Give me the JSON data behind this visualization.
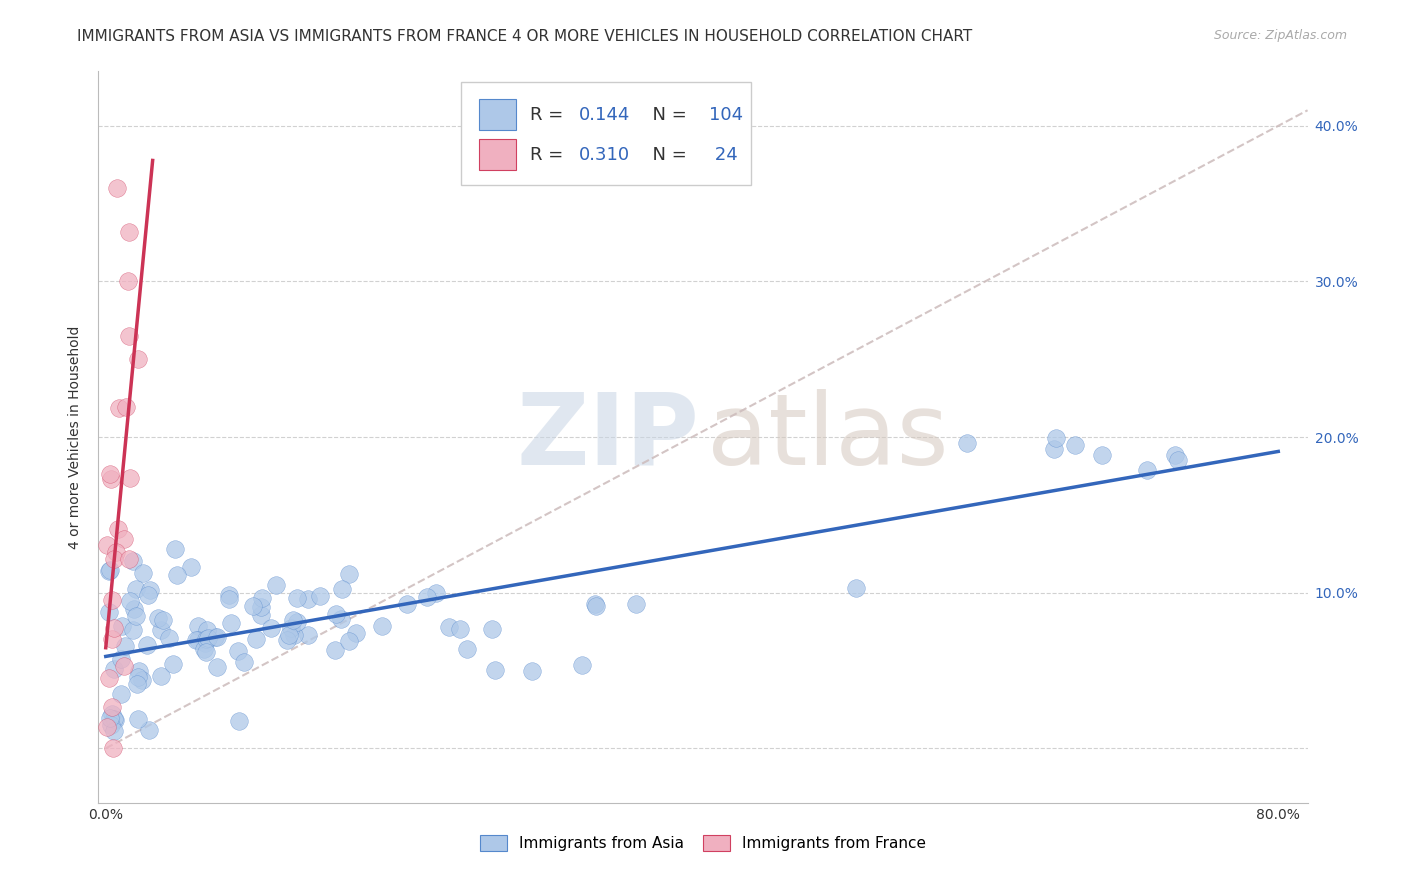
{
  "title": "IMMIGRANTS FROM ASIA VS IMMIGRANTS FROM FRANCE 4 OR MORE VEHICLES IN HOUSEHOLD CORRELATION CHART",
  "source": "Source: ZipAtlas.com",
  "ylabel": "4 or more Vehicles in Household",
  "xlim": [
    -0.005,
    0.82
  ],
  "ylim": [
    -0.035,
    0.435
  ],
  "xtick_vals": [
    0.0,
    0.1,
    0.2,
    0.3,
    0.4,
    0.5,
    0.6,
    0.7,
    0.8
  ],
  "xticklabels": [
    "0.0%",
    "",
    "",
    "",
    "",
    "",
    "",
    "",
    "80.0%"
  ],
  "ytick_vals": [
    0.0,
    0.1,
    0.2,
    0.3,
    0.4
  ],
  "yticklabels_left": [
    "",
    "",
    "",
    "",
    ""
  ],
  "yticklabels_right": [
    "",
    "10.0%",
    "20.0%",
    "30.0%",
    "40.0%"
  ],
  "legend_label1": "Immigrants from Asia",
  "legend_label2": "Immigrants from France",
  "R1": "0.144",
  "N1": "104",
  "R2": "0.310",
  "N2": "24",
  "color_asia_fill": "#aec8e8",
  "color_asia_edge": "#5588cc",
  "color_france_fill": "#f0b0c0",
  "color_france_edge": "#d04060",
  "line_color_asia": "#3366bb",
  "line_color_france": "#cc3355",
  "diagonal_color": "#ccbbbb",
  "grid_color": "#cccccc",
  "background_color": "#ffffff",
  "title_fontsize": 11,
  "tick_fontsize": 10,
  "ylabel_fontsize": 10,
  "legend_box_color": "#4472c4",
  "seed": 12345
}
